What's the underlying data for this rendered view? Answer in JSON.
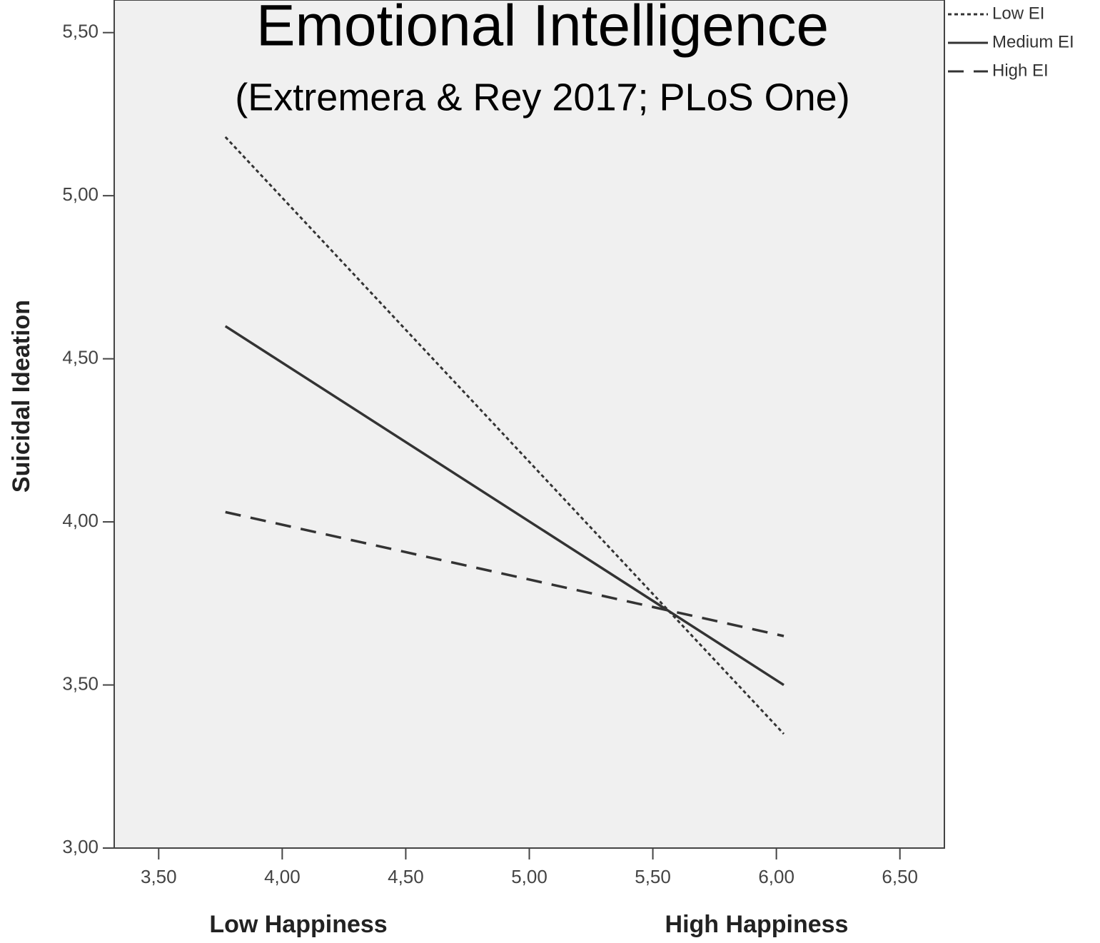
{
  "chart_data": {
    "type": "line",
    "title": "Emotional Intelligence",
    "subtitle": "(Extremera & Rey 2017; PLoS One)",
    "y_label": "Suicidal Ideation",
    "annotations": [
      "Low Happiness",
      "High Happiness"
    ],
    "x": [
      3.77,
      6.03
    ],
    "series": [
      {
        "name": "Low EI",
        "color": "#333333",
        "dash": "dotted",
        "values": [
          5.18,
          3.35
        ]
      },
      {
        "name": "Medium EI",
        "color": "#333333",
        "dash": "solid",
        "values": [
          4.6,
          3.5
        ]
      },
      {
        "name": "High EI",
        "color": "#333333",
        "dash": "dashed",
        "values": [
          4.03,
          3.65
        ]
      }
    ],
    "xlim": [
      3.32,
      6.68
    ],
    "ylim": [
      3.0,
      5.6
    ],
    "xticks": [
      {
        "value": 3.5,
        "label": "3,50"
      },
      {
        "value": 4.0,
        "label": "4,00"
      },
      {
        "value": 4.5,
        "label": "4,50"
      },
      {
        "value": 5.0,
        "label": "5,00"
      },
      {
        "value": 5.5,
        "label": "5,50"
      },
      {
        "value": 6.0,
        "label": "6,00"
      },
      {
        "value": 6.5,
        "label": "6,50"
      }
    ],
    "yticks": [
      {
        "value": 3.0,
        "label": "3,00"
      },
      {
        "value": 3.5,
        "label": "3,50"
      },
      {
        "value": 4.0,
        "label": "4,00"
      },
      {
        "value": 4.5,
        "label": "4,50"
      },
      {
        "value": 5.0,
        "label": "5,00"
      },
      {
        "value": 5.5,
        "label": "5,50"
      }
    ],
    "legend": "upper right"
  }
}
